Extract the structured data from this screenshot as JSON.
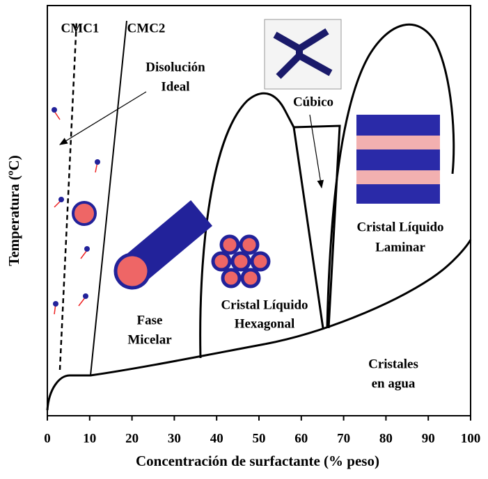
{
  "axes": {
    "x_label": "Concentración de surfactante (% peso)",
    "y_label": "Temperatura (ºC)",
    "xlim": [
      0,
      100
    ],
    "xticks": [
      0,
      10,
      20,
      30,
      40,
      50,
      60,
      70,
      80,
      90,
      100
    ]
  },
  "labels": {
    "cmc1": "CMC1",
    "cmc2": "CMC2",
    "ideal_solution": [
      "Disolución",
      "Ideal"
    ],
    "cubic": "Cúbico",
    "lamellar": [
      "Cristal Líquido",
      "Laminar"
    ],
    "micellar": [
      "Fase",
      "Micelar"
    ],
    "hexagonal": [
      "Cristal Líquido",
      "Hexagonal"
    ],
    "crystals": [
      "Cristales",
      "en agua"
    ]
  }
}
